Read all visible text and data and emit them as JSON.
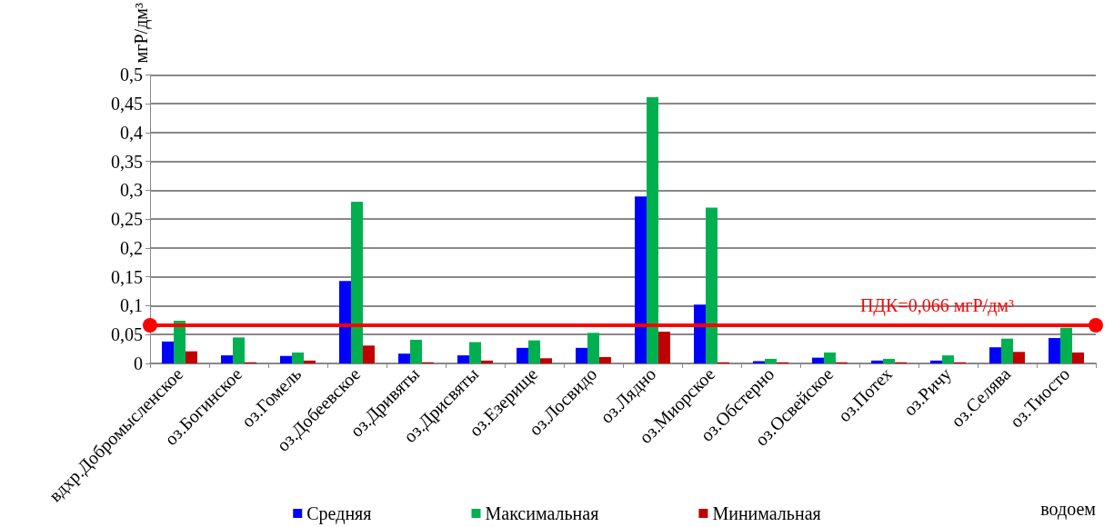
{
  "chart_data": {
    "type": "bar",
    "categories": [
      "вдхр.Добромысленское",
      "оз.Богинское",
      "оз.Гомель",
      "оз.Добеевское",
      "оз.Дривяты",
      "оз.Дрисвяты",
      "оз.Езерище",
      "оз.Лосвидо",
      "оз.Лядно",
      "оз.Миорское",
      "оз.Обстерно",
      "оз.Освейское",
      "оз.Потех",
      "оз.Ричу",
      "оз.Селява",
      "оз.Тиосто"
    ],
    "series": [
      {
        "name": "Средняя",
        "color": "#0000ff",
        "values": [
          0.038,
          0.014,
          0.013,
          0.143,
          0.017,
          0.014,
          0.027,
          0.027,
          0.289,
          0.102,
          0.004,
          0.01,
          0.005,
          0.005,
          0.028,
          0.044
        ]
      },
      {
        "name": "Максимальная",
        "color": "#00b050",
        "values": [
          0.074,
          0.045,
          0.019,
          0.28,
          0.041,
          0.037,
          0.04,
          0.053,
          0.461,
          0.27,
          0.008,
          0.019,
          0.008,
          0.014,
          0.043,
          0.062
        ]
      },
      {
        "name": "Минимальная",
        "color": "#c00000",
        "values": [
          0.021,
          0.002,
          0.005,
          0.031,
          0.002,
          0.005,
          0.009,
          0.011,
          0.055,
          0.002,
          0.002,
          0.002,
          0.002,
          0.002,
          0.02,
          0.019
        ]
      }
    ],
    "xlabel": "водоем",
    "ylabel": "мгР/дм³",
    "ylim": [
      0,
      0.5
    ],
    "yticks": [
      0,
      {
        "value": 0.05,
        "label": "0,05"
      },
      {
        "value": 0.1,
        "label": "0,1"
      },
      {
        "value": 0.15,
        "label": "0,15"
      },
      {
        "value": 0.2,
        "label": "0,2"
      },
      {
        "value": 0.25,
        "label": "0,25"
      },
      {
        "value": 0.3,
        "label": "0,3"
      },
      {
        "value": 0.35,
        "label": "0,35"
      },
      {
        "value": 0.4,
        "label": "0,4"
      },
      {
        "value": 0.45,
        "label": "0,45"
      },
      {
        "value": 0.5,
        "label": "0,5"
      }
    ],
    "ref_lines": [
      {
        "axis": "y",
        "value": 0.066,
        "label": "ПДК=0,066 мгР/дм³",
        "color": "#ff0000",
        "line_style": "solid"
      }
    ],
    "grid": "y",
    "legend": "bottom"
  }
}
